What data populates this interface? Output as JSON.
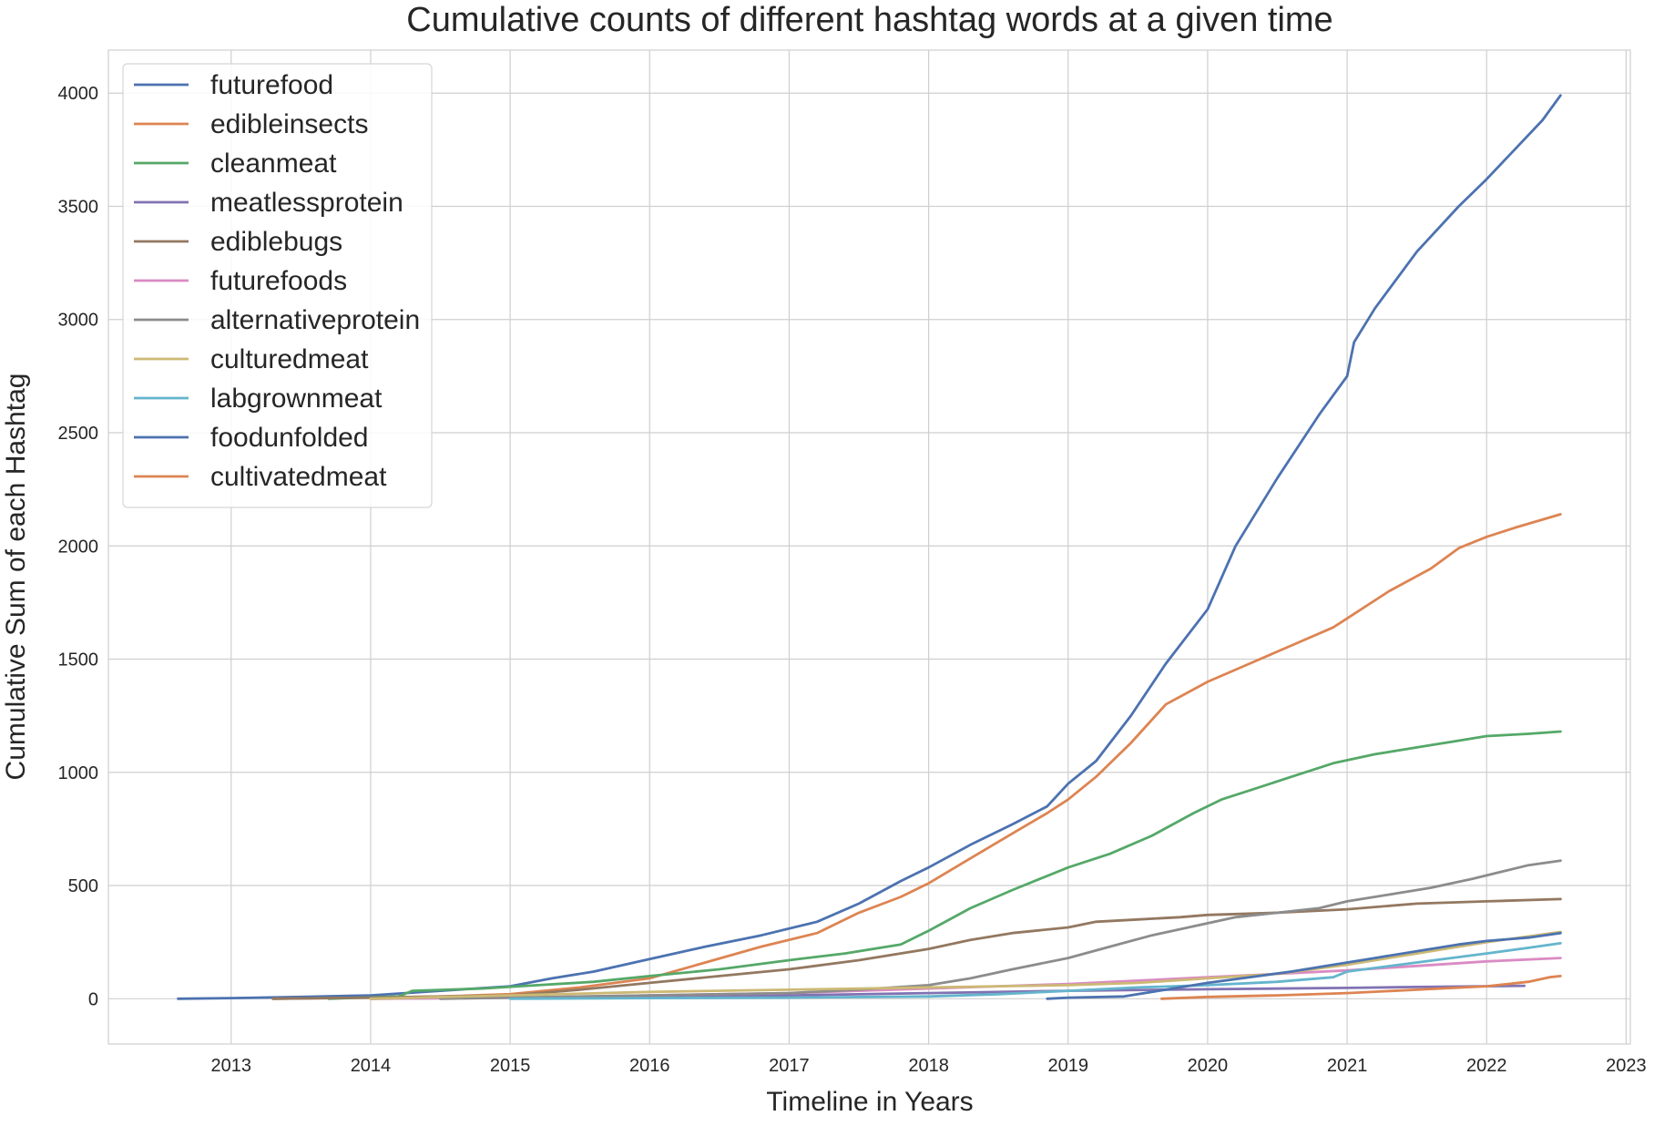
{
  "chart_data": {
    "type": "line",
    "title": "Cumulative counts of different hashtag words at a given time",
    "xlabel": "Timeline in Years",
    "ylabel": "Cumulative Sum of each Hashtag",
    "xlim": [
      2012.12,
      2023.03
    ],
    "ylim": [
      -200,
      4190
    ],
    "x_ticks": [
      "2013",
      "2014",
      "2015",
      "2016",
      "2017",
      "2018",
      "2019",
      "2020",
      "2021",
      "2022",
      "2023"
    ],
    "y_ticks": [
      "0",
      "500",
      "1000",
      "1500",
      "2000",
      "2500",
      "3000",
      "3500",
      "4000"
    ],
    "grid": true,
    "legend_position": "top-left",
    "series": [
      {
        "name": "futurefood",
        "color": "#4c72b0",
        "x": [
          2012.62,
          2013.0,
          2013.5,
          2014.0,
          2014.5,
          2015.0,
          2015.3,
          2015.6,
          2016.0,
          2016.4,
          2016.8,
          2017.2,
          2017.5,
          2017.8,
          2018.0,
          2018.3,
          2018.6,
          2018.85,
          2019.0,
          2019.2,
          2019.45,
          2019.7,
          2020.0,
          2020.2,
          2020.5,
          2020.8,
          2021.0,
          2021.05,
          2021.2,
          2021.5,
          2021.8,
          2022.0,
          2022.2,
          2022.4,
          2022.53
        ],
        "y": [
          0,
          3,
          8,
          15,
          35,
          55,
          90,
          120,
          175,
          230,
          280,
          340,
          420,
          520,
          580,
          680,
          770,
          850,
          950,
          1050,
          1250,
          1480,
          1720,
          2000,
          2300,
          2580,
          2750,
          2900,
          3050,
          3300,
          3500,
          3620,
          3750,
          3880,
          3990
        ]
      },
      {
        "name": "edibleinsects",
        "color": "#dd8452",
        "x": [
          2013.3,
          2014.0,
          2014.5,
          2015.0,
          2015.5,
          2016.0,
          2016.4,
          2016.8,
          2017.2,
          2017.5,
          2017.8,
          2018.0,
          2018.3,
          2018.6,
          2018.85,
          2019.0,
          2019.2,
          2019.45,
          2019.7,
          2020.0,
          2020.3,
          2020.6,
          2020.9,
          2021.0,
          2021.3,
          2021.6,
          2021.8,
          2022.0,
          2022.2,
          2022.53
        ],
        "y": [
          0,
          5,
          10,
          20,
          50,
          90,
          160,
          230,
          290,
          380,
          450,
          510,
          620,
          730,
          820,
          880,
          980,
          1130,
          1300,
          1400,
          1480,
          1560,
          1640,
          1680,
          1800,
          1900,
          1990,
          2040,
          2080,
          2140
        ]
      },
      {
        "name": "cleanmeat",
        "color": "#55a868",
        "x": [
          2013.7,
          2014.2,
          2014.3,
          2014.8,
          2015.2,
          2015.6,
          2016.0,
          2016.5,
          2017.0,
          2017.4,
          2017.8,
          2018.0,
          2018.3,
          2018.6,
          2018.8,
          2019.0,
          2019.3,
          2019.6,
          2019.9,
          2020.1,
          2020.3,
          2020.6,
          2020.9,
          2021.2,
          2021.5,
          2021.8,
          2022.0,
          2022.3,
          2022.53
        ],
        "y": [
          0,
          10,
          35,
          45,
          60,
          75,
          100,
          130,
          170,
          200,
          240,
          300,
          400,
          480,
          530,
          580,
          640,
          720,
          820,
          880,
          920,
          980,
          1040,
          1080,
          1110,
          1140,
          1160,
          1170,
          1180
        ]
      },
      {
        "name": "meatlessprotein",
        "color": "#8172b3",
        "x": [
          2014.0,
          2015.0,
          2016.0,
          2017.0,
          2018.0,
          2019.0,
          2020.0,
          2021.0,
          2021.5,
          2022.27
        ],
        "y": [
          0,
          5,
          10,
          15,
          25,
          35,
          42,
          48,
          52,
          57
        ]
      },
      {
        "name": "ediblebugs",
        "color": "#937860",
        "x": [
          2013.3,
          2014.0,
          2015.0,
          2015.5,
          2016.0,
          2016.5,
          2017.0,
          2017.5,
          2018.0,
          2018.3,
          2018.6,
          2019.0,
          2019.2,
          2019.5,
          2019.8,
          2020.0,
          2020.5,
          2021.0,
          2021.5,
          2022.0,
          2022.53
        ],
        "y": [
          0,
          5,
          15,
          40,
          70,
          100,
          130,
          170,
          220,
          260,
          290,
          315,
          340,
          350,
          360,
          370,
          380,
          395,
          420,
          430,
          440
        ]
      },
      {
        "name": "futurefoods",
        "color": "#da8bc3",
        "x": [
          2014.0,
          2015.0,
          2016.0,
          2017.0,
          2017.5,
          2018.0,
          2018.5,
          2019.0,
          2019.5,
          2020.0,
          2020.5,
          2021.0,
          2021.5,
          2022.0,
          2022.53
        ],
        "y": [
          0,
          5,
          15,
          25,
          35,
          45,
          55,
          65,
          80,
          95,
          110,
          125,
          145,
          165,
          180
        ]
      },
      {
        "name": "alternativeprotein",
        "color": "#8c8c8c",
        "x": [
          2014.5,
          2015.0,
          2016.0,
          2017.0,
          2017.5,
          2018.0,
          2018.3,
          2018.6,
          2019.0,
          2019.3,
          2019.6,
          2019.9,
          2020.2,
          2020.5,
          2020.8,
          2021.0,
          2021.3,
          2021.6,
          2021.9,
          2022.1,
          2022.3,
          2022.53
        ],
        "y": [
          0,
          5,
          15,
          25,
          40,
          60,
          90,
          130,
          180,
          230,
          280,
          320,
          360,
          380,
          400,
          430,
          460,
          490,
          530,
          560,
          590,
          610
        ]
      },
      {
        "name": "culturedmeat",
        "color": "#ccb974",
        "x": [
          2014.0,
          2015.0,
          2016.0,
          2017.0,
          2018.0,
          2018.5,
          2019.0,
          2019.5,
          2020.0,
          2020.5,
          2021.0,
          2021.5,
          2022.0,
          2022.53
        ],
        "y": [
          0,
          15,
          30,
          40,
          50,
          55,
          60,
          70,
          90,
          110,
          150,
          200,
          250,
          295
        ]
      },
      {
        "name": "labgrownmeat",
        "color": "#64b5cd",
        "x": [
          2015.0,
          2016.0,
          2017.0,
          2018.0,
          2018.5,
          2019.0,
          2019.5,
          2020.0,
          2020.5,
          2020.9,
          2021.0,
          2021.5,
          2022.0,
          2022.3,
          2022.53
        ],
        "y": [
          0,
          3,
          5,
          10,
          20,
          35,
          50,
          60,
          75,
          95,
          120,
          160,
          200,
          225,
          245
        ]
      },
      {
        "name": "foodunfolded",
        "color": "#4c72b0",
        "x": [
          2018.85,
          2019.0,
          2019.4,
          2019.7,
          2020.0,
          2020.3,
          2020.6,
          2020.9,
          2021.2,
          2021.5,
          2021.8,
          2022.0,
          2022.3,
          2022.53
        ],
        "y": [
          0,
          5,
          10,
          40,
          70,
          95,
          120,
          150,
          180,
          210,
          240,
          255,
          270,
          290
        ]
      },
      {
        "name": "cultivatedmeat",
        "color": "#dd8452",
        "x": [
          2019.67,
          2020.0,
          2020.5,
          2021.0,
          2021.5,
          2022.0,
          2022.3,
          2022.45,
          2022.53
        ],
        "y": [
          0,
          8,
          15,
          25,
          40,
          55,
          75,
          95,
          100
        ]
      }
    ]
  }
}
